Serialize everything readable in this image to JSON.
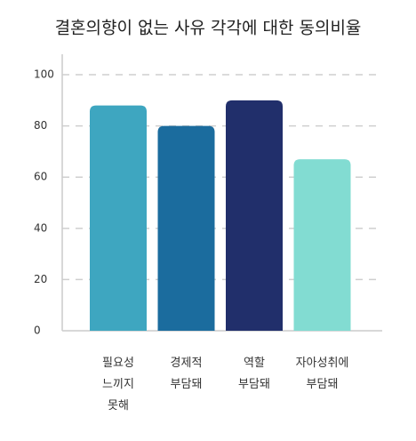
{
  "chart_data": {
    "type": "bar",
    "title": "결혼의향이 없는 사유 각각에 대한 동의비율",
    "categories": [
      "필요성\n느끼지\n못해",
      "경제적\n부담돼",
      "역할\n부담돼",
      "자아성취에\n부담돼"
    ],
    "values": [
      88,
      80,
      90,
      67
    ],
    "colors": [
      "#3ea6c0",
      "#1b6c9e",
      "#212f6b",
      "#82dcd2"
    ],
    "ylim": [
      0,
      108
    ],
    "yticks": [
      0,
      20,
      40,
      60,
      80,
      100
    ],
    "grid": true
  }
}
